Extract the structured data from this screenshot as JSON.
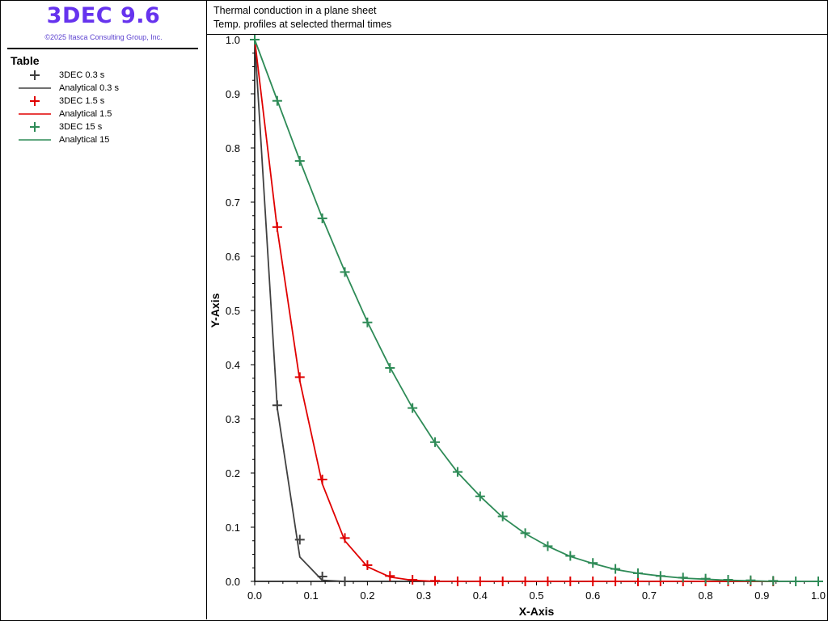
{
  "app": {
    "title": "3DEC 9.6",
    "copyright": "©2025 Itasca Consulting Group, Inc."
  },
  "legend": {
    "title": "Table",
    "items": [
      {
        "label": "3DEC 0.3 s",
        "kind": "marker",
        "color": "#404040"
      },
      {
        "label": "Analytical 0.3 s",
        "kind": "line",
        "color": "#404040"
      },
      {
        "label": "3DEC 1.5 s",
        "kind": "marker",
        "color": "#e00000"
      },
      {
        "label": "Analytical 1.5",
        "kind": "line",
        "color": "#e00000"
      },
      {
        "label": "3DEC 15 s",
        "kind": "marker",
        "color": "#2e8b57"
      },
      {
        "label": "Analytical 15",
        "kind": "line",
        "color": "#2e8b57"
      }
    ]
  },
  "chart_data": {
    "type": "line",
    "title": "Thermal conduction in a plane sheet",
    "subtitle": "Temp. profiles at selected thermal times",
    "xlabel": "X-Axis",
    "ylabel": "Y-Axis",
    "xlim": [
      0,
      1.0
    ],
    "ylim": [
      0,
      1.0
    ],
    "xticks": [
      "0.0",
      "0.1",
      "0.2",
      "0.3",
      "0.4",
      "0.5",
      "0.6",
      "0.7",
      "0.8",
      "0.9",
      "1.0"
    ],
    "yticks": [
      "0.0",
      "0.1",
      "0.2",
      "0.3",
      "0.4",
      "0.5",
      "0.6",
      "0.7",
      "0.8",
      "0.9",
      "1.0"
    ],
    "grid": false,
    "series": [
      {
        "name": "Analytical 0.3 s",
        "kind": "line",
        "color": "#404040",
        "x": [
          0,
          0.04,
          0.08,
          0.12,
          0.16
        ],
        "y": [
          1.0,
          0.32,
          0.045,
          0.002,
          0.0
        ]
      },
      {
        "name": "3DEC 0.3 s",
        "kind": "marker",
        "color": "#404040",
        "x": [
          0,
          0.04,
          0.08,
          0.12,
          0.16
        ],
        "y": [
          1.0,
          0.325,
          0.077,
          0.009,
          0.0
        ]
      },
      {
        "name": "Analytical 1.5",
        "kind": "line",
        "color": "#e00000",
        "x": [
          0,
          0.04,
          0.08,
          0.12,
          0.16,
          0.2,
          0.24,
          0.28,
          0.32,
          0.36,
          0.4,
          0.44,
          0.48,
          0.52,
          0.56,
          0.6,
          0.64,
          0.68,
          0.72,
          0.76,
          0.8,
          0.84,
          0.88,
          0.92
        ],
        "y": [
          1.0,
          0.65,
          0.37,
          0.18,
          0.075,
          0.027,
          0.008,
          0.002,
          0.0,
          0,
          0,
          0,
          0,
          0,
          0,
          0,
          0,
          0,
          0,
          0,
          0,
          0,
          0,
          0
        ]
      },
      {
        "name": "3DEC 1.5 s",
        "kind": "marker",
        "color": "#e00000",
        "x": [
          0,
          0.04,
          0.08,
          0.12,
          0.16,
          0.2,
          0.24,
          0.28,
          0.32,
          0.36,
          0.4,
          0.44,
          0.48,
          0.52,
          0.56,
          0.6,
          0.64,
          0.68,
          0.72,
          0.76,
          0.8,
          0.84,
          0.88,
          0.92
        ],
        "y": [
          1.0,
          0.654,
          0.377,
          0.188,
          0.08,
          0.03,
          0.01,
          0.003,
          0.001,
          0,
          0,
          0,
          0,
          0,
          0,
          0,
          0,
          0,
          0,
          0,
          0,
          0,
          0,
          0
        ]
      },
      {
        "name": "Analytical 15",
        "kind": "line",
        "color": "#2e8b57",
        "x": [
          0,
          0.04,
          0.08,
          0.12,
          0.16,
          0.2,
          0.24,
          0.28,
          0.32,
          0.36,
          0.4,
          0.44,
          0.48,
          0.52,
          0.56,
          0.6,
          0.64,
          0.68,
          0.72,
          0.76,
          0.8,
          0.84,
          0.88,
          0.92,
          0.96,
          1.0
        ],
        "y": [
          1.0,
          0.888,
          0.777,
          0.671,
          0.572,
          0.479,
          0.395,
          0.32,
          0.256,
          0.201,
          0.157,
          0.118,
          0.088,
          0.065,
          0.046,
          0.033,
          0.022,
          0.015,
          0.01,
          0.006,
          0.004,
          0.002,
          0.001,
          0.0,
          0.0,
          0.0
        ]
      },
      {
        "name": "3DEC 15 s",
        "kind": "marker",
        "color": "#2e8b57",
        "x": [
          0,
          0.04,
          0.08,
          0.12,
          0.16,
          0.2,
          0.24,
          0.28,
          0.32,
          0.36,
          0.4,
          0.44,
          0.48,
          0.52,
          0.56,
          0.6,
          0.64,
          0.68,
          0.72,
          0.76,
          0.8,
          0.84,
          0.88,
          0.92,
          0.96,
          1.0
        ],
        "y": [
          1.0,
          0.887,
          0.776,
          0.67,
          0.571,
          0.478,
          0.394,
          0.32,
          0.257,
          0.202,
          0.157,
          0.12,
          0.089,
          0.065,
          0.047,
          0.034,
          0.023,
          0.015,
          0.01,
          0.007,
          0.005,
          0.003,
          0.002,
          0.001,
          0.0,
          0.0
        ]
      }
    ]
  }
}
